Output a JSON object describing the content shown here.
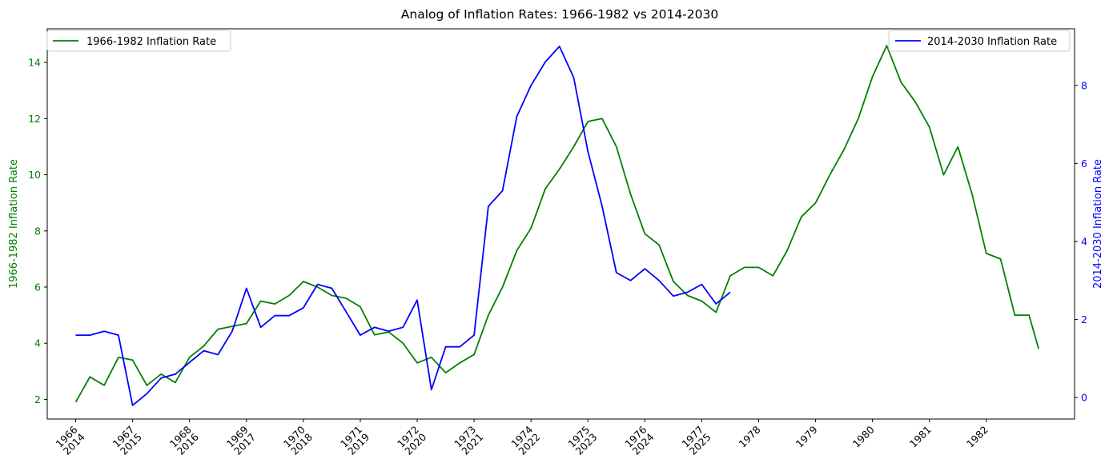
{
  "chart_data": {
    "type": "line",
    "title": "Analog of Inflation Rates: 1966-1982 vs 2014-2030",
    "xlabel": "",
    "left_axis": {
      "label": "1966-1982 Inflation Rate",
      "color": "#008000",
      "ylim": [
        1.3,
        15.2
      ],
      "ticks": [
        2,
        4,
        6,
        8,
        10,
        12,
        14
      ]
    },
    "right_axis": {
      "label": "2014-2030 Inflation Rate",
      "color": "#0000ff",
      "ylim": [
        -0.55,
        9.45
      ],
      "ticks": [
        0,
        2,
        4,
        6,
        8
      ]
    },
    "x_tick_labels": [
      [
        "1966",
        "2014"
      ],
      [
        "1967",
        "2015"
      ],
      [
        "1968",
        "2016"
      ],
      [
        "1969",
        "2017"
      ],
      [
        "1970",
        "2018"
      ],
      [
        "1971",
        "2019"
      ],
      [
        "1972",
        "2020"
      ],
      [
        "1973",
        "2021"
      ],
      [
        "1974",
        "2022"
      ],
      [
        "1975",
        "2023"
      ],
      [
        "1976",
        "2024"
      ],
      [
        "1977",
        "2025"
      ],
      [
        "1978"
      ],
      [
        "1979"
      ],
      [
        "1980"
      ],
      [
        "1981"
      ],
      [
        "1982"
      ]
    ],
    "grid": false,
    "series": [
      {
        "name": "1966-1982 Inflation Rate",
        "color": "#008000",
        "axis": "left",
        "legend_position": "top-left",
        "x": [
          1966.0,
          1966.25,
          1966.5,
          1966.75,
          1967.0,
          1967.25,
          1967.5,
          1967.75,
          1968.0,
          1968.25,
          1968.5,
          1968.75,
          1969.0,
          1969.25,
          1969.5,
          1969.75,
          1970.0,
          1970.25,
          1970.5,
          1970.75,
          1971.0,
          1971.25,
          1971.5,
          1971.75,
          1972.0,
          1972.25,
          1972.5,
          1972.75,
          1973.0,
          1973.25,
          1973.5,
          1973.75,
          1974.0,
          1974.25,
          1974.5,
          1974.75,
          1975.0,
          1975.25,
          1975.5,
          1975.75,
          1976.0,
          1976.25,
          1976.5,
          1976.75,
          1977.0,
          1977.25,
          1977.5,
          1977.75,
          1978.0,
          1978.25,
          1978.5,
          1978.75,
          1979.0,
          1979.25,
          1979.5,
          1979.75,
          1980.0,
          1980.25,
          1980.5,
          1980.75,
          1981.0,
          1981.25,
          1981.5,
          1981.75,
          1982.0,
          1982.25,
          1982.5,
          1982.75,
          1982.92
        ],
        "values": [
          1.9,
          2.8,
          2.5,
          3.5,
          3.4,
          2.5,
          2.9,
          2.6,
          3.5,
          3.9,
          4.5,
          4.6,
          4.7,
          5.5,
          5.4,
          5.7,
          6.2,
          6.0,
          5.7,
          5.6,
          5.3,
          4.3,
          4.4,
          4.0,
          3.3,
          3.5,
          2.95,
          3.3,
          3.6,
          5.0,
          6.0,
          7.3,
          8.1,
          9.5,
          10.2,
          11.0,
          11.9,
          12.0,
          11.0,
          9.3,
          7.9,
          7.5,
          6.2,
          5.7,
          5.5,
          5.1,
          6.4,
          6.7,
          6.7,
          6.4,
          7.3,
          8.5,
          9.0,
          10.0,
          10.9,
          12.0,
          13.5,
          14.6,
          13.3,
          12.6,
          11.7,
          10.0,
          11.0,
          9.3,
          7.2,
          7.0,
          5.0,
          5.0,
          3.8
        ]
      },
      {
        "name": "2014-2030 Inflation Rate",
        "color": "#0000ff",
        "axis": "right",
        "legend_position": "top-right",
        "x": [
          1966.0,
          1966.25,
          1966.5,
          1966.75,
          1967.0,
          1967.25,
          1967.5,
          1967.75,
          1968.0,
          1968.25,
          1968.5,
          1968.75,
          1969.0,
          1969.25,
          1969.5,
          1969.75,
          1970.0,
          1970.25,
          1970.5,
          1970.75,
          1971.0,
          1971.25,
          1971.5,
          1971.75,
          1972.0,
          1972.25,
          1972.5,
          1972.75,
          1973.0,
          1973.25,
          1973.5,
          1973.75,
          1974.0,
          1974.25,
          1974.5,
          1974.75,
          1975.0,
          1975.25,
          1975.5,
          1975.75,
          1976.0,
          1976.25,
          1976.5,
          1976.75,
          1977.0,
          1977.25,
          1977.5
        ],
        "values": [
          1.6,
          1.6,
          1.7,
          1.6,
          -0.2,
          0.1,
          0.5,
          0.6,
          0.9,
          1.2,
          1.1,
          1.7,
          2.8,
          1.8,
          2.1,
          2.1,
          2.3,
          2.9,
          2.8,
          2.2,
          1.6,
          1.8,
          1.7,
          1.8,
          2.5,
          0.2,
          1.3,
          1.3,
          1.6,
          4.9,
          5.3,
          7.2,
          8.0,
          8.6,
          9.0,
          8.2,
          6.3,
          4.9,
          3.2,
          3.0,
          3.3,
          3.0,
          2.6,
          2.7,
          2.9,
          2.4,
          2.7
        ]
      }
    ]
  }
}
